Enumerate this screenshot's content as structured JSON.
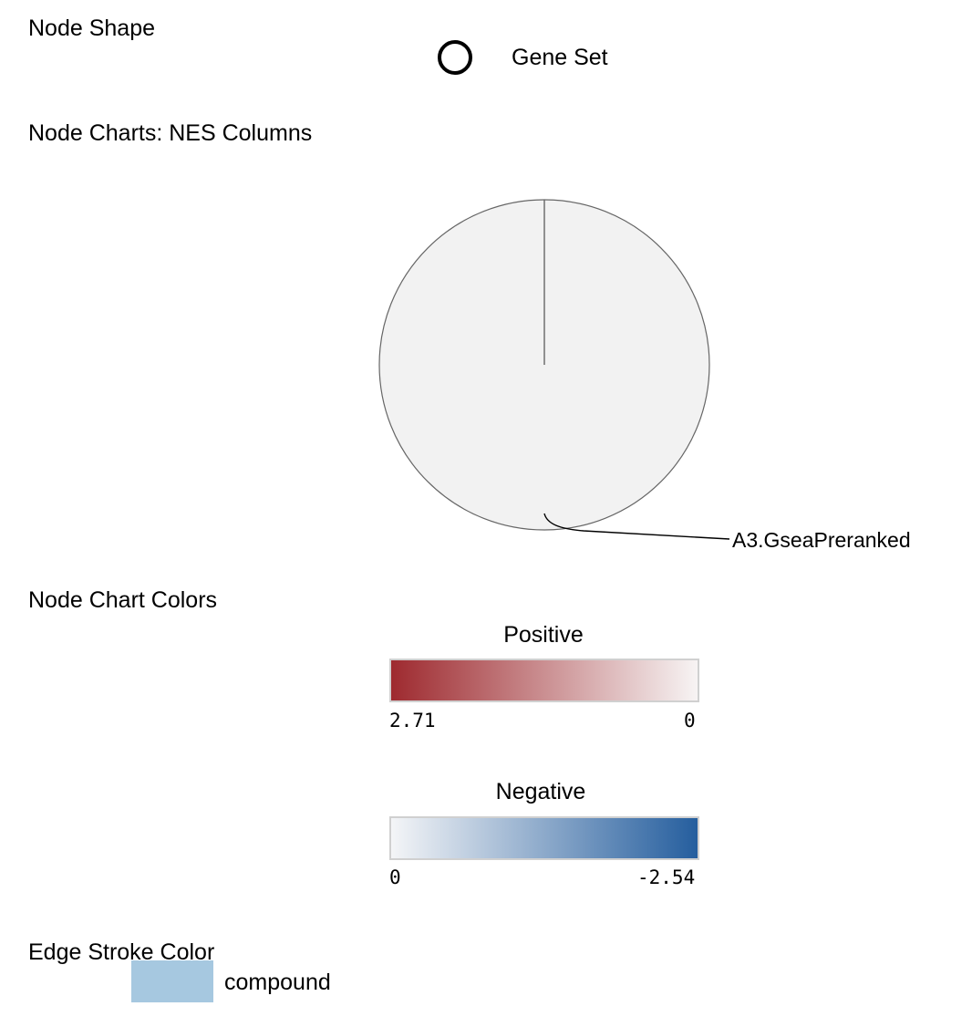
{
  "node_shape": {
    "title": "Node Shape",
    "items": [
      {
        "icon": "circle-outline-icon",
        "label": "Gene Set"
      }
    ]
  },
  "node_charts": {
    "title": "Node Charts: NES Columns",
    "slices": [
      {
        "label": "A3.GseaPreranked",
        "fraction": 1.0
      }
    ]
  },
  "node_chart_colors": {
    "title": "Node Chart Colors",
    "positive": {
      "title": "Positive",
      "min_label": "2.71",
      "max_label": "0",
      "color_start": "#9e2a2f",
      "color_end": "#f7f4f4"
    },
    "negative": {
      "title": "Negative",
      "min_label": "0",
      "max_label": "-2.54",
      "color_start": "#f4f5f7",
      "color_end": "#255e9e"
    }
  },
  "edge_stroke_color": {
    "title": "Edge Stroke Color",
    "items": [
      {
        "label": "compound",
        "color": "#a6c8e0"
      }
    ]
  },
  "colors": {
    "pie_fill": "#f2f2f2",
    "pie_stroke": "#666666",
    "leader_line": "#000000"
  }
}
